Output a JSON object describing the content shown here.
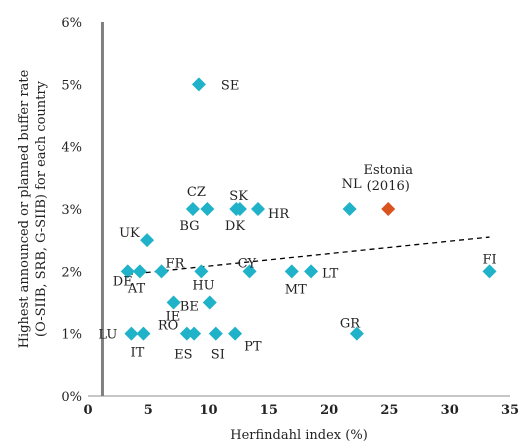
{
  "chart_data": {
    "type": "scatter",
    "title": "",
    "xlabel": "Herfindahl index (%)",
    "ylabel_lines": [
      "Highest announced or planned buffer rate",
      "(O-SIIB, SRB, G-SIIB) for each country"
    ],
    "xlim": [
      0,
      35
    ],
    "ylim": [
      0,
      6
    ],
    "x_ticks": [
      0,
      5,
      10,
      15,
      20,
      25,
      30,
      35
    ],
    "y_ticks": [
      0,
      1,
      2,
      3,
      4,
      5,
      6
    ],
    "y_tick_labels": [
      "0%",
      "1%",
      "2%",
      "3%",
      "4%",
      "5%",
      "6%"
    ],
    "grid": false,
    "reference_line_x": 1.2,
    "trendline": {
      "x": [
        3.3,
        33.3
      ],
      "y": [
        1.95,
        2.55
      ],
      "style": "dashed"
    },
    "colors": {
      "points": "#1FB2C8",
      "highlight": "#D9531E",
      "trend": "#000000",
      "refline": "#808080"
    },
    "points": [
      {
        "label": "SE",
        "x": 9.2,
        "y": 5.0
      },
      {
        "label": "CZ",
        "x": 8.7,
        "y": 3.0
      },
      {
        "label": "BG",
        "x": 9.9,
        "y": 3.0
      },
      {
        "label": "DK",
        "x": 12.6,
        "y": 3.0
      },
      {
        "label": "SK",
        "x": 12.3,
        "y": 3.0
      },
      {
        "label": "HR",
        "x": 14.1,
        "y": 3.0
      },
      {
        "label": "NL",
        "x": 21.7,
        "y": 3.0
      },
      {
        "label": "Estonia (2016)",
        "x": 24.9,
        "y": 3.0,
        "highlight": true
      },
      {
        "label": "UK",
        "x": 4.9,
        "y": 2.5
      },
      {
        "label": "DE",
        "x": 3.3,
        "y": 2.0
      },
      {
        "label": "FR",
        "x": 6.1,
        "y": 2.0
      },
      {
        "label": "AT",
        "x": 4.3,
        "y": 2.0
      },
      {
        "label": "HU",
        "x": 9.4,
        "y": 2.0
      },
      {
        "label": "CY",
        "x": 13.4,
        "y": 2.0
      },
      {
        "label": "MT",
        "x": 16.9,
        "y": 2.0
      },
      {
        "label": "LT",
        "x": 18.5,
        "y": 2.0
      },
      {
        "label": "FI",
        "x": 33.3,
        "y": 2.0
      },
      {
        "label": "BE",
        "x": 10.1,
        "y": 1.5
      },
      {
        "label": "IE",
        "x": 7.1,
        "y": 1.5
      },
      {
        "label": "LU",
        "x": 3.6,
        "y": 1.0
      },
      {
        "label": "IT",
        "x": 4.6,
        "y": 1.0
      },
      {
        "label": "RO",
        "x": 8.2,
        "y": 1.0
      },
      {
        "label": "ES",
        "x": 8.8,
        "y": 1.0
      },
      {
        "label": "SI",
        "x": 10.6,
        "y": 1.0
      },
      {
        "label": "PT",
        "x": 12.2,
        "y": 1.0
      },
      {
        "label": "GR",
        "x": 22.3,
        "y": 1.0
      }
    ]
  }
}
